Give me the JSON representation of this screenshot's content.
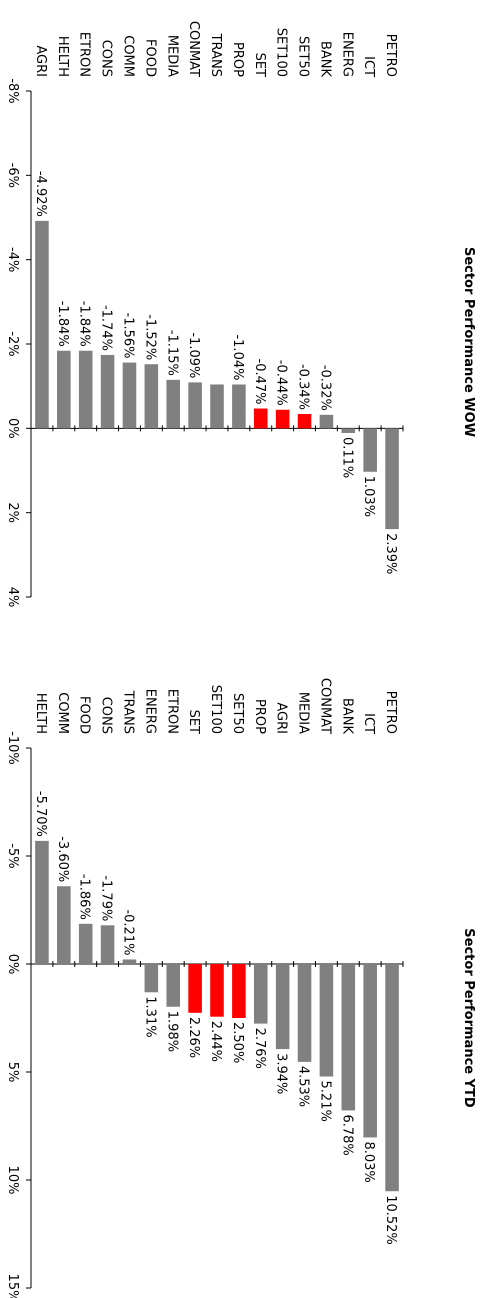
{
  "chart_data": [
    {
      "type": "bar",
      "title": "Sector Performance WOW",
      "categories": [
        "PETRO",
        "ICT",
        "ENERG",
        "BANK",
        "SET50",
        "SET100",
        "SET",
        "PROP",
        "TRANS",
        "CONMAT",
        "MEDIA",
        "FOOD",
        "COMM",
        "CONS",
        "ETRON",
        "HELTH",
        "AGRI"
      ],
      "values": [
        2.39,
        1.03,
        0.11,
        -0.32,
        -0.34,
        -0.44,
        -0.47,
        -1.04,
        -1.04,
        -1.09,
        -1.15,
        -1.52,
        -1.56,
        -1.74,
        -1.84,
        -1.84,
        -4.92
      ],
      "labels": [
        "2.39%",
        "1.03%",
        "0.11%",
        "-0.32%",
        "-0.34%",
        "-0.44%",
        "-0.47%",
        "-1.04%",
        "",
        "-1.09%",
        "-1.15%",
        "-1.52%",
        "-1.56%",
        "-1.74%",
        "-1.84%",
        "-1.84%",
        "-4.92%"
      ],
      "highlight": [
        "SET50",
        "SET100",
        "SET"
      ],
      "ylim": [
        -8,
        4
      ],
      "ticks": [
        -8,
        -6,
        -4,
        -2,
        0,
        2,
        4
      ],
      "tick_labels": [
        "-8%",
        "-6%",
        "-4%",
        "-2%",
        "0%",
        "2%",
        "4%"
      ],
      "bar_color": "#808080",
      "highlight_color": "#ff0000"
    },
    {
      "type": "bar",
      "title": "Sector Performance YTD",
      "categories": [
        "PETRO",
        "ICT",
        "BANK",
        "CONMAT",
        "MEDIA",
        "AGRI",
        "PROP",
        "SET50",
        "SET100",
        "SET",
        "ETRON",
        "ENERG",
        "TRANS",
        "CONS",
        "FOOD",
        "COMM",
        "HELTH"
      ],
      "values": [
        10.52,
        8.03,
        6.78,
        5.21,
        4.53,
        3.94,
        2.76,
        2.5,
        2.44,
        2.26,
        1.98,
        1.31,
        -0.21,
        -1.79,
        -1.86,
        -3.6,
        -5.7
      ],
      "labels": [
        "10.52%",
        "8.03%",
        "6.78%",
        "5.21%",
        "4.53%",
        "3.94%",
        "2.76%",
        "2.50%",
        "2.44%",
        "2.26%",
        "1.98%",
        "1.31%",
        "-0.21%",
        "-1.79%",
        "-1.86%",
        "-3.60%",
        "-5.70%"
      ],
      "highlight": [
        "SET50",
        "SET100",
        "SET"
      ],
      "ylim": [
        -10,
        15
      ],
      "ticks": [
        -10,
        -5,
        0,
        5,
        10,
        15
      ],
      "tick_labels": [
        "-10%",
        "-5%",
        "0%",
        "5%",
        "10%",
        "15%"
      ],
      "bar_color": "#808080",
      "highlight_color": "#ff0000"
    }
  ]
}
